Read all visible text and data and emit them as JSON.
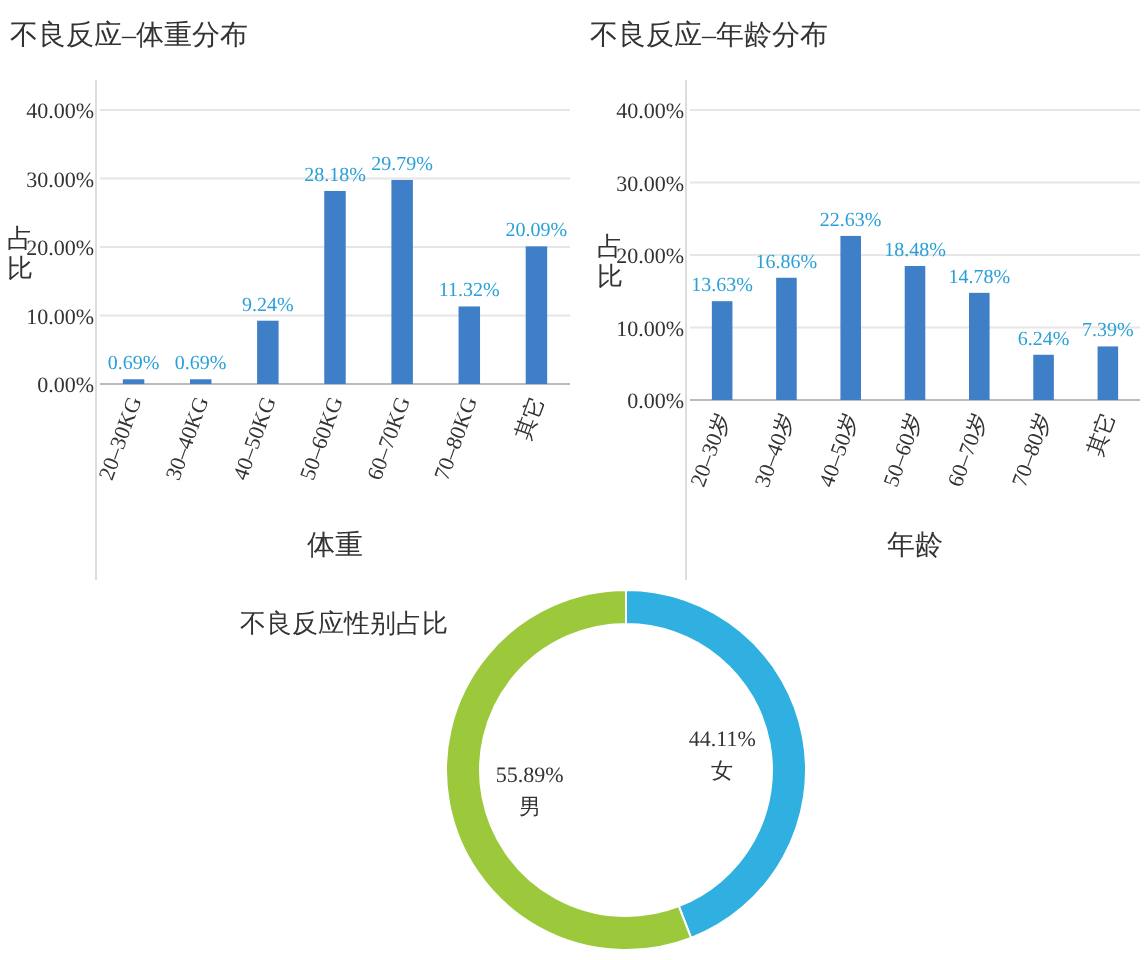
{
  "chart_data": [
    {
      "type": "bar",
      "title": "不良反应–体重分布",
      "xlabel": "体重",
      "ylabel": "占比",
      "categories": [
        "20–30KG",
        "30–40KG",
        "40–50KG",
        "50–60KG",
        "60–70KG",
        "70–80KG",
        "其它"
      ],
      "values": [
        0.69,
        0.69,
        9.24,
        28.18,
        29.79,
        11.32,
        20.09
      ],
      "value_labels": [
        "0.69%",
        "0.69%",
        "9.24%",
        "28.18%",
        "29.79%",
        "11.32%",
        "20.09%"
      ],
      "color": "#3f7fc7",
      "ylim": [
        0,
        40
      ],
      "yticks": [
        {
          "value": 0,
          "label": "0.00%"
        },
        {
          "value": 10,
          "label": "10.00%"
        },
        {
          "value": 20,
          "label": "20.00%"
        },
        {
          "value": 30,
          "label": "30.00%"
        },
        {
          "value": 40,
          "label": "40.00%"
        }
      ],
      "grid": "y"
    },
    {
      "type": "bar",
      "title": "不良反应–年龄分布",
      "xlabel": "年龄",
      "ylabel": "占比",
      "categories": [
        "20–30岁",
        "30–40岁",
        "40–50岁",
        "50–60岁",
        "60–70岁",
        "70–80岁",
        "其它"
      ],
      "values": [
        13.63,
        16.86,
        22.63,
        18.48,
        14.78,
        6.24,
        7.39
      ],
      "value_labels": [
        "13.63%",
        "16.86%",
        "22.63%",
        "18.48%",
        "14.78%",
        "6.24%",
        "7.39%"
      ],
      "color": "#3f7fc7",
      "ylim": [
        0,
        40
      ],
      "yticks": [
        {
          "value": 0,
          "label": "0.00%"
        },
        {
          "value": 10,
          "label": "10.00%"
        },
        {
          "value": 20,
          "label": "20.00%"
        },
        {
          "value": 30,
          "label": "30.00%"
        },
        {
          "value": 40,
          "label": "40.00%"
        }
      ],
      "grid": "y"
    },
    {
      "type": "donut",
      "title": "不良反应性别占比",
      "categories": [
        "女",
        "男"
      ],
      "values": [
        44.11,
        55.89
      ],
      "value_labels": [
        "44.11%",
        "55.89%"
      ],
      "colors": [
        "#2fb0e0",
        "#9cc93c"
      ]
    }
  ]
}
